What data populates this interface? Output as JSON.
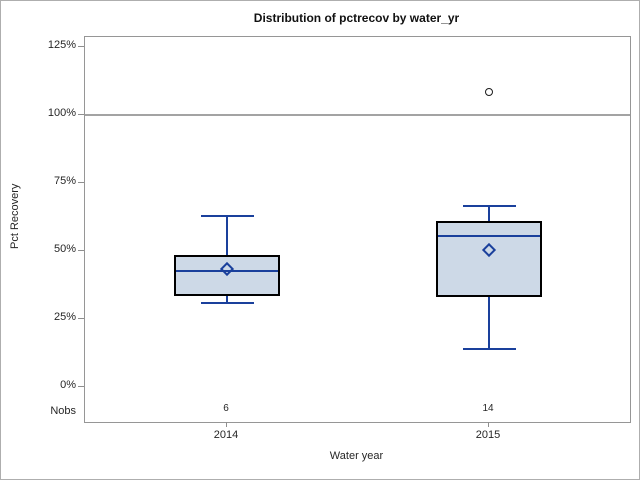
{
  "window": {
    "background": "#ffffff",
    "border_color": "#aeaeae"
  },
  "chart_data": {
    "type": "boxplot",
    "title": "Distribution of pctrecov by water_yr",
    "xlabel": "Water year",
    "ylabel": "Pct Recovery",
    "y_unit": "percent",
    "ylim": [
      0,
      125
    ],
    "grid": "off",
    "y_ticks": [
      {
        "v": 0,
        "label": "0%"
      },
      {
        "v": 25,
        "label": "25%"
      },
      {
        "v": 50,
        "label": "50%"
      },
      {
        "v": 75,
        "label": "75%"
      },
      {
        "v": 100,
        "label": "100%"
      },
      {
        "v": 125,
        "label": "125%"
      }
    ],
    "reference_line_y": 100,
    "nobs_row_label": "Nobs",
    "groups": [
      {
        "label": "2014",
        "nobs": "6",
        "whisker_low": 31,
        "q1": 33.5,
        "median": 42.5,
        "mean": 43.5,
        "q3": 48.5,
        "whisker_high": 63,
        "outliers": []
      },
      {
        "label": "2015",
        "nobs": "14",
        "whisker_low": 14,
        "q1": 33,
        "median": 55.5,
        "mean": 50.5,
        "q3": 61,
        "whisker_high": 66.5,
        "outliers": [
          108.5
        ]
      }
    ],
    "colors": {
      "box_fill": "#cdd9e7",
      "box_border": "#000000",
      "line_blue": "#1a409c",
      "reference_gray": "#a3a3a3",
      "outlier_stroke": "#1c1c1c",
      "frame_gray": "#969696",
      "text": "#262626"
    }
  }
}
